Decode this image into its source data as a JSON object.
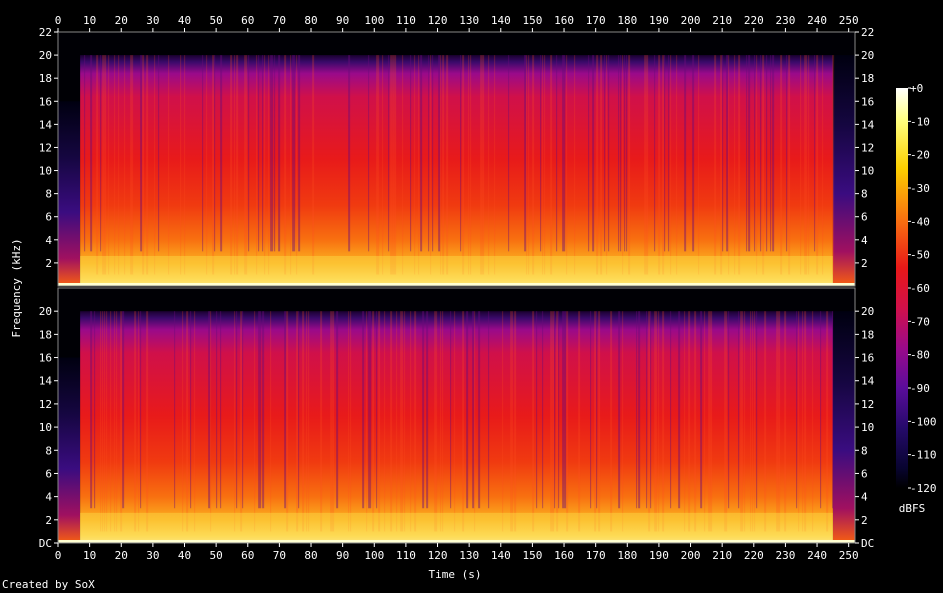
{
  "chart_data": {
    "type": "heatmap",
    "title": "",
    "xlabel": "Time (s)",
    "ylabel": "Frequency (kHz)",
    "x_ticks": [
      "0",
      "10",
      "20",
      "30",
      "40",
      "50",
      "60",
      "70",
      "80",
      "90",
      "100",
      "110",
      "120",
      "130",
      "140",
      "150",
      "160",
      "170",
      "180",
      "190",
      "200",
      "210",
      "220",
      "230",
      "240",
      "250"
    ],
    "xlim": [
      0,
      252
    ],
    "channels": [
      {
        "y_ticks_left": [
          "22",
          "20",
          "18",
          "16",
          "14",
          "12",
          "10",
          "8",
          "6",
          "4",
          "2"
        ],
        "y_ticks_right": [
          "22",
          "20",
          "18",
          "16",
          "14",
          "12",
          "10",
          "8",
          "6",
          "4",
          "2"
        ],
        "ylim": [
          0,
          22
        ],
        "content_start_s": 7,
        "content_end_s": 245,
        "max_freq_khz": 20
      },
      {
        "y_ticks_left": [
          "20",
          "18",
          "16",
          "14",
          "12",
          "10",
          "8",
          "6",
          "4",
          "2",
          "DC"
        ],
        "y_ticks_right": [
          "20",
          "18",
          "16",
          "14",
          "12",
          "10",
          "8",
          "6",
          "4",
          "2",
          "DC"
        ],
        "ylim": [
          0,
          22
        ],
        "content_start_s": 7,
        "content_end_s": 245,
        "max_freq_khz": 20
      }
    ],
    "colorbar": {
      "label": "dBFS",
      "ticks": [
        "+0",
        "-10",
        "-20",
        "-30",
        "-40",
        "-50",
        "-60",
        "-70",
        "-80",
        "-90",
        "-100",
        "-110",
        "-120"
      ],
      "range": [
        -120,
        0
      ]
    }
  },
  "credit": "Created by SoX"
}
